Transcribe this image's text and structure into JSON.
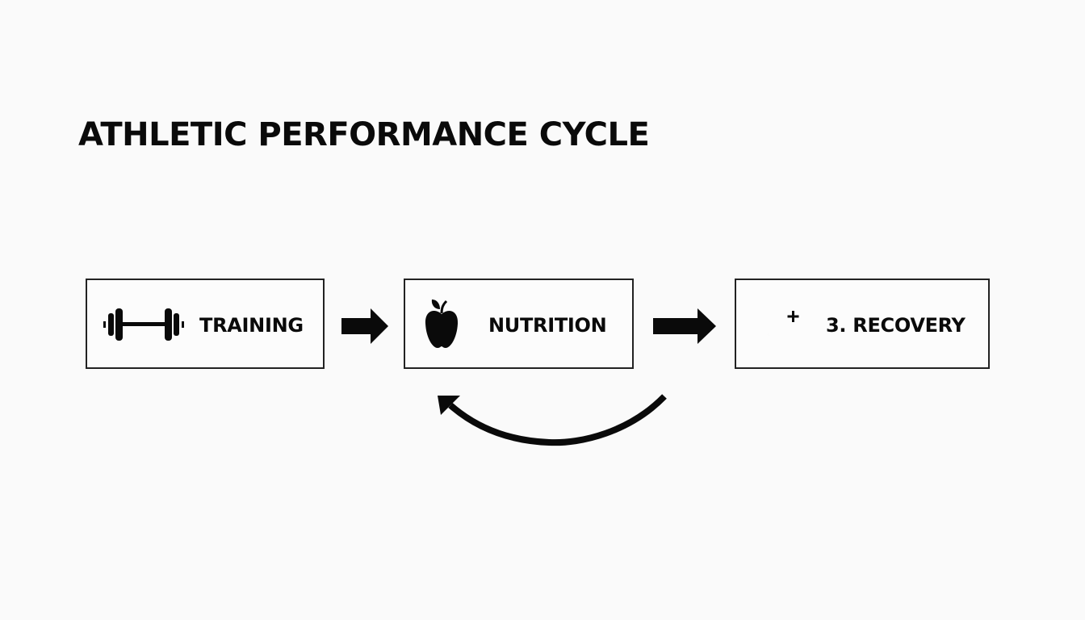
{
  "title": "ATHLETIC PERFORMANCE CYCLE",
  "steps": [
    {
      "label": "TRAINING",
      "icon": "dumbbell-icon"
    },
    {
      "label": "NUTRITION",
      "icon": "apple-icon"
    },
    {
      "label": "3. RECOVERY",
      "icon": "moon-plus-icon"
    }
  ],
  "colors": {
    "ink": "#0a0a0a",
    "background": "#fafafa"
  }
}
